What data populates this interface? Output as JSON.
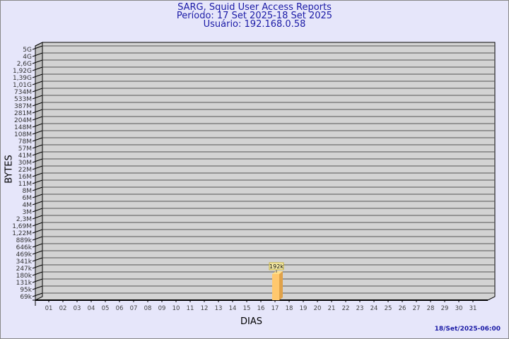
{
  "chart_data": {
    "type": "bar",
    "title": "SARG, Squid User Access Reports",
    "subtitle_period": "Período: 17 Set 2025-18 Set 2025",
    "subtitle_user": "Usuário: 192.168.0.58",
    "xlabel": "DIAS",
    "ylabel": "BYTES",
    "y_scale": "log",
    "y_ticks": [
      "5G",
      "4G",
      "2,6G",
      "1,92G",
      "1,39G",
      "1,01G",
      "734M",
      "533M",
      "387M",
      "281M",
      "204M",
      "148M",
      "108M",
      "78M",
      "57M",
      "41M",
      "30M",
      "22M",
      "16M",
      "11M",
      "8M",
      "6M",
      "4M",
      "3M",
      "2,3M",
      "1,69M",
      "1,22M",
      "889k",
      "646k",
      "469k",
      "341k",
      "247k",
      "180k",
      "131k",
      "95k",
      "69k"
    ],
    "categories": [
      "01",
      "02",
      "03",
      "04",
      "05",
      "06",
      "07",
      "08",
      "09",
      "10",
      "11",
      "12",
      "13",
      "14",
      "15",
      "16",
      "17",
      "18",
      "19",
      "20",
      "21",
      "22",
      "23",
      "24",
      "25",
      "26",
      "27",
      "28",
      "29",
      "30",
      "31"
    ],
    "bars": [
      {
        "category": "17",
        "value": 192000,
        "label": "192k"
      }
    ],
    "grid": true,
    "colors": {
      "bar_front": "#ffc86e",
      "bar_side": "#e0a24a",
      "plot_bg": "#d3d3d3",
      "background": "#e6e6fa",
      "title": "#1a1aa6"
    }
  },
  "footer": {
    "timestamp": "18/Set/2025-06:00"
  }
}
